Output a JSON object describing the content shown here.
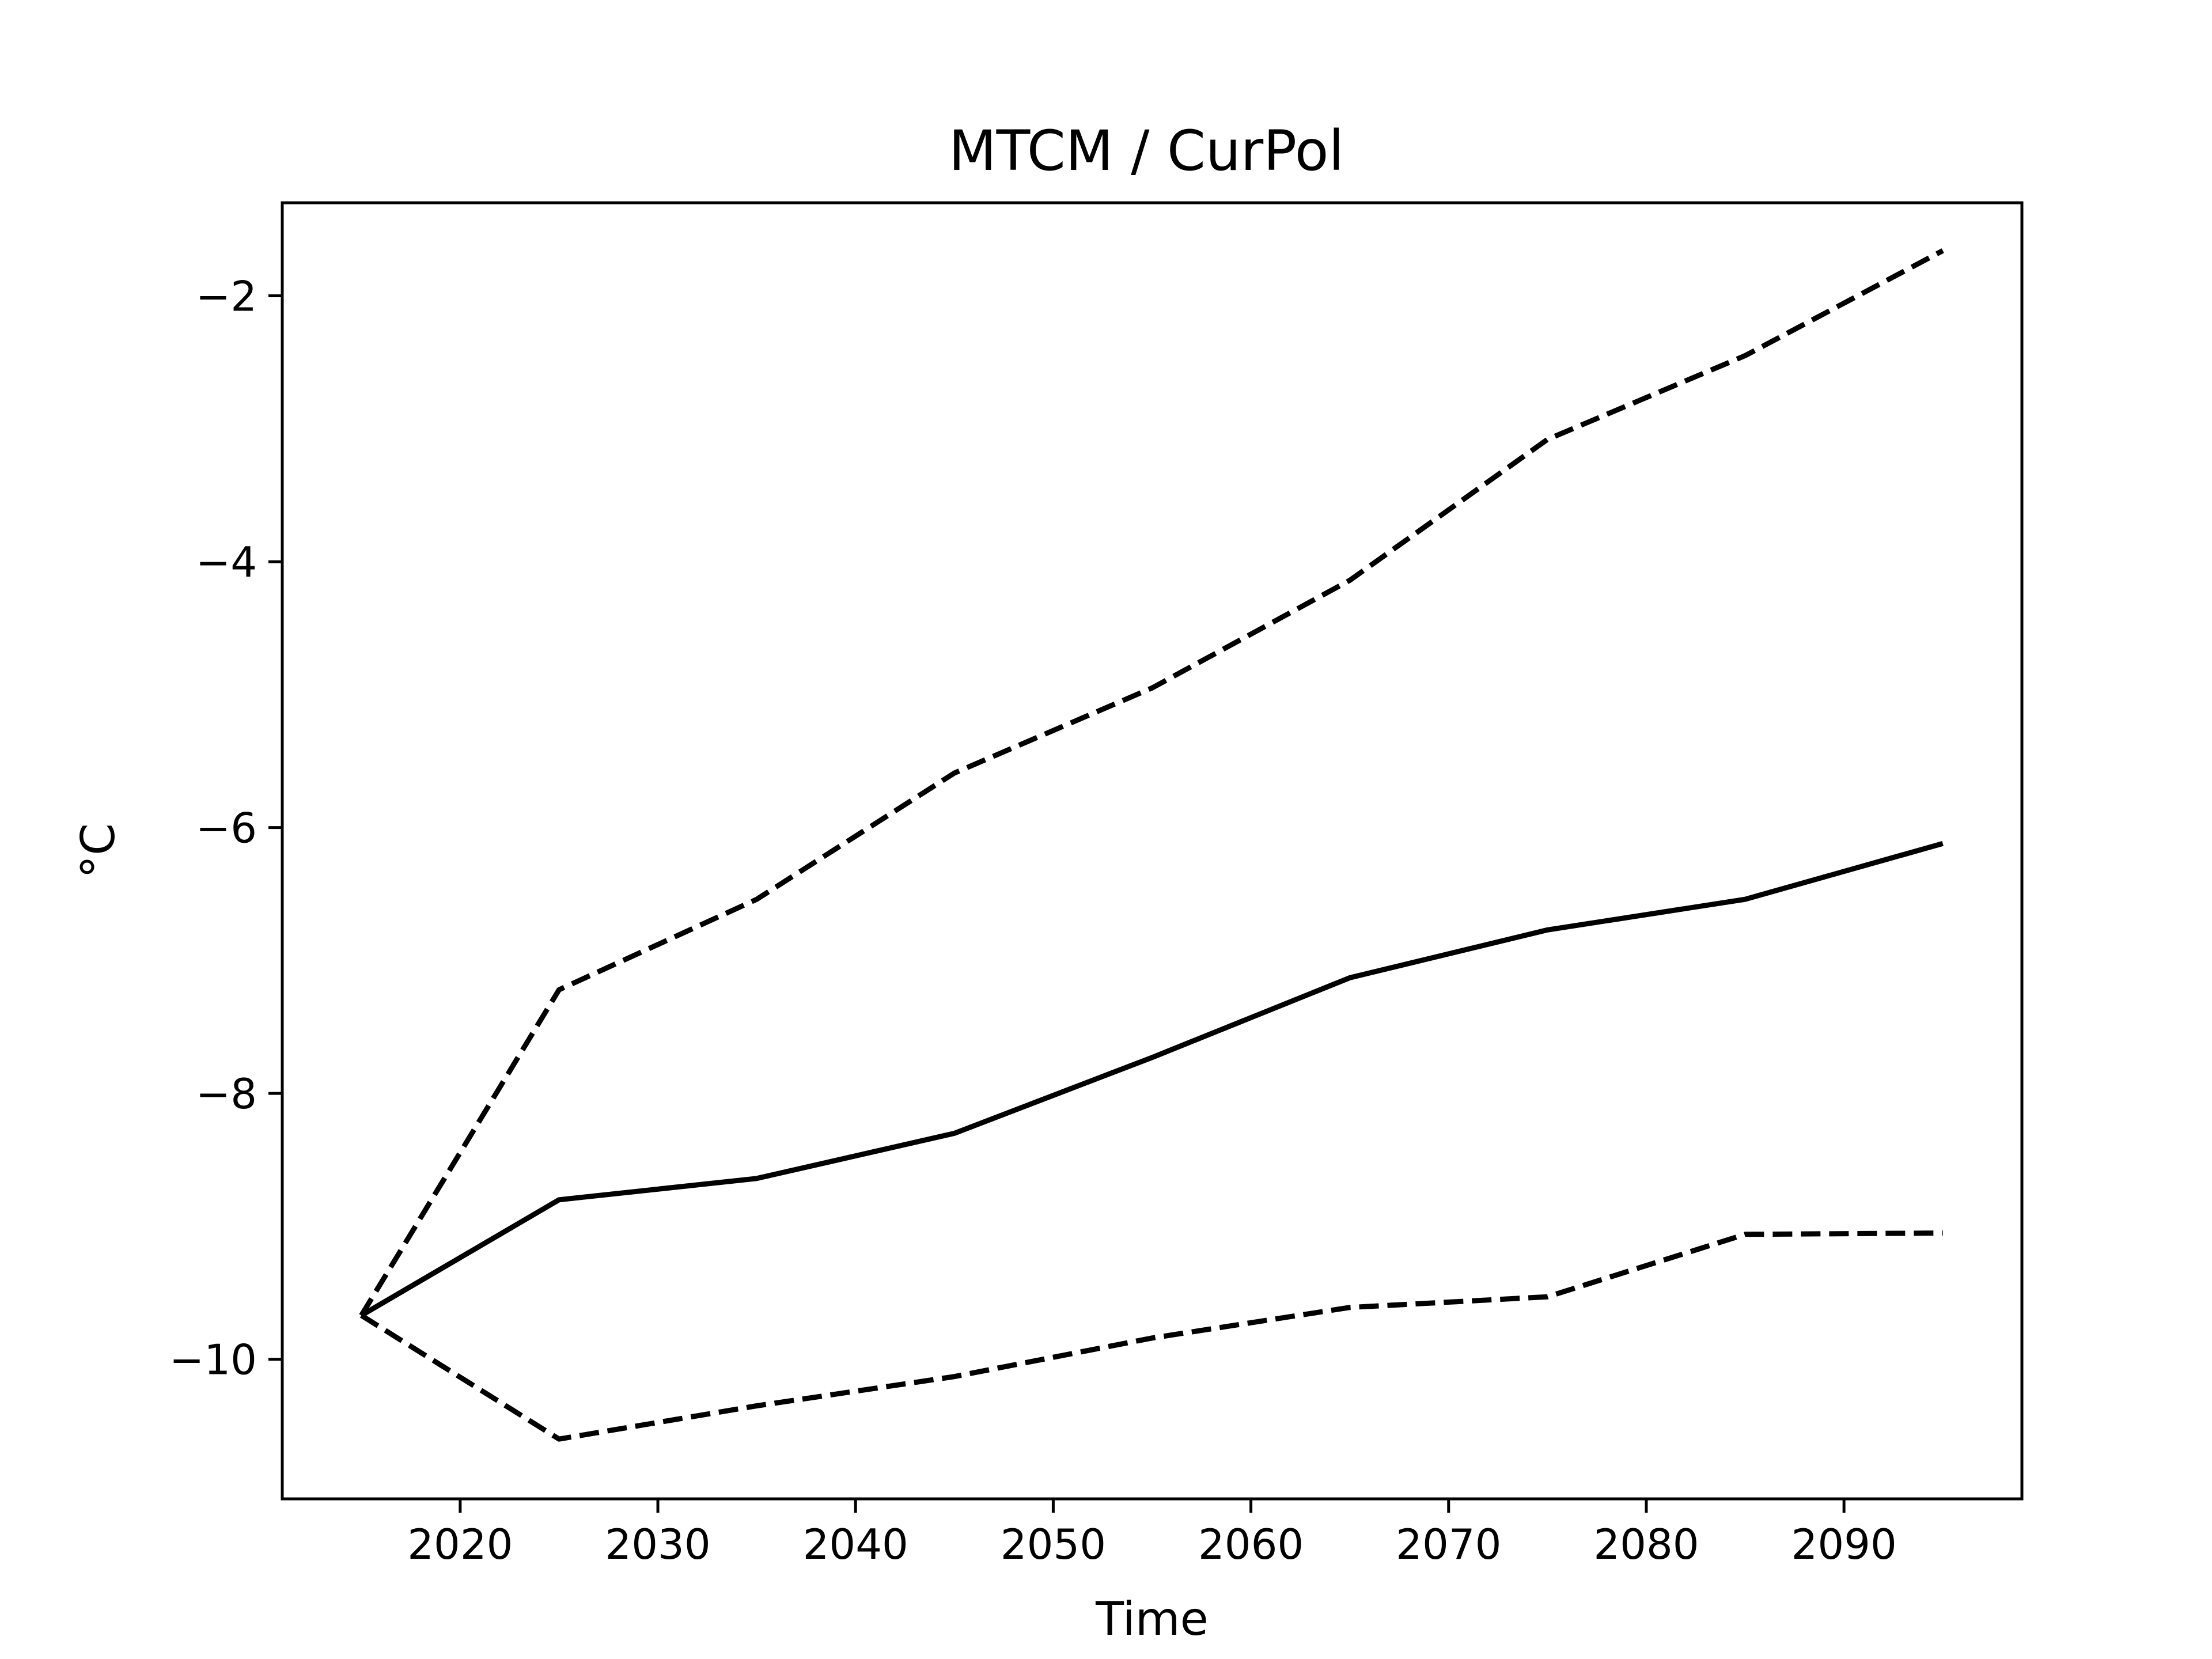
{
  "chart_data": {
    "type": "line",
    "title": "MTCM / CurPol",
    "xlabel": "Time",
    "ylabel": "°C",
    "xlim": [
      2011,
      2099
    ],
    "ylim": [
      -11.05,
      -1.3
    ],
    "xticks": [
      2020,
      2030,
      2040,
      2050,
      2060,
      2070,
      2080,
      2090
    ],
    "yticks": [
      -10,
      -8,
      -6,
      -4,
      -2
    ],
    "ytick_labels": [
      "−10",
      "−8",
      "−6",
      "−4",
      "−2"
    ],
    "grid": false,
    "x": [
      2015,
      2025,
      2035,
      2045,
      2055,
      2065,
      2075,
      2085,
      2095
    ],
    "series": [
      {
        "style": "dashed",
        "color": "#000000",
        "values": [
          -9.67,
          -7.22,
          -6.54,
          -5.59,
          -4.95,
          -4.14,
          -3.08,
          -2.45,
          -1.66
        ]
      },
      {
        "style": "solid",
        "color": "#000000",
        "values": [
          -9.67,
          -8.8,
          -8.64,
          -8.3,
          -7.73,
          -7.13,
          -6.77,
          -6.54,
          -6.12
        ]
      },
      {
        "style": "dashed",
        "color": "#000000",
        "values": [
          -9.67,
          -10.6,
          -10.35,
          -10.13,
          -9.84,
          -9.61,
          -9.53,
          -9.06,
          -9.05
        ]
      }
    ]
  }
}
